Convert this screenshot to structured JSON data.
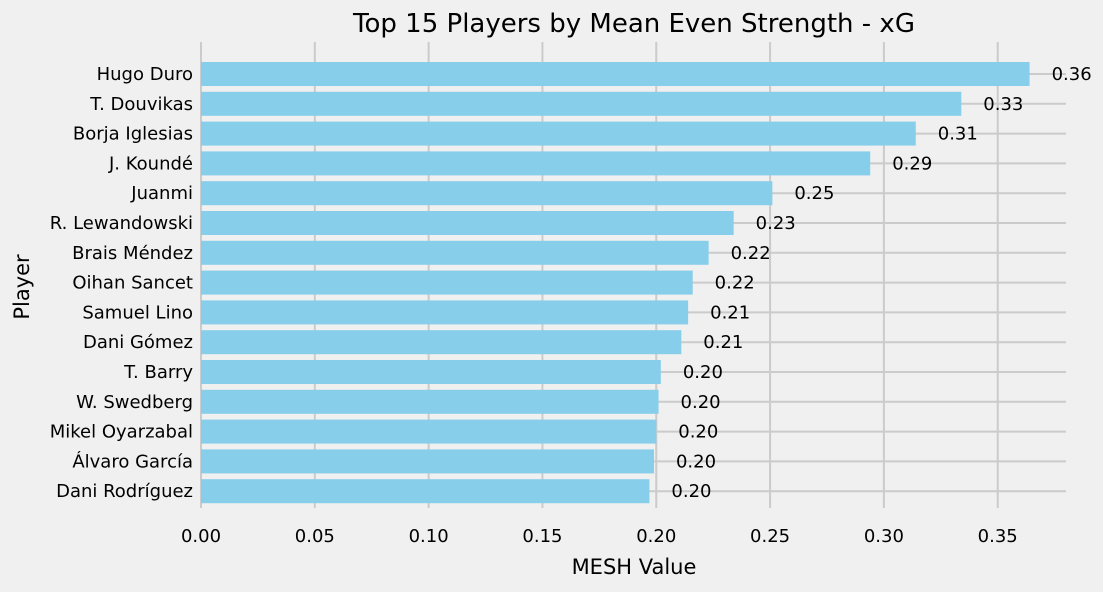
{
  "chart_data": {
    "type": "bar",
    "orientation": "horizontal",
    "title": "Top 15 Players by Mean Even Strength - xG",
    "xlabel": "MESH Value",
    "ylabel": "Player",
    "xlim": [
      0,
      0.38
    ],
    "xticks": [
      0.0,
      0.05,
      0.1,
      0.15,
      0.2,
      0.25,
      0.3,
      0.35
    ],
    "xtick_labels": [
      "0.00",
      "0.05",
      "0.10",
      "0.15",
      "0.20",
      "0.25",
      "0.30",
      "0.35"
    ],
    "grid": true,
    "bar_color": "#87ceeb",
    "background_color": "#f0f0f0",
    "grid_color": "#cbcbcb",
    "categories": [
      "Hugo Duro",
      "T. Douvikas",
      "Borja Iglesias",
      "J. Koundé",
      "Juanmi",
      "R. Lewandowski",
      "Brais Méndez",
      "Oihan Sancet",
      "Samuel Lino",
      "Dani Gómez",
      "T. Barry",
      "W. Swedberg",
      "Mikel Oyarzabal",
      "Álvaro García",
      "Dani Rodríguez"
    ],
    "values": [
      0.364,
      0.334,
      0.314,
      0.294,
      0.251,
      0.234,
      0.223,
      0.216,
      0.214,
      0.211,
      0.202,
      0.201,
      0.2,
      0.199,
      0.197
    ],
    "value_labels": [
      "0.36",
      "0.33",
      "0.31",
      "0.29",
      "0.25",
      "0.23",
      "0.22",
      "0.22",
      "0.21",
      "0.21",
      "0.20",
      "0.20",
      "0.20",
      "0.20",
      "0.20"
    ]
  }
}
